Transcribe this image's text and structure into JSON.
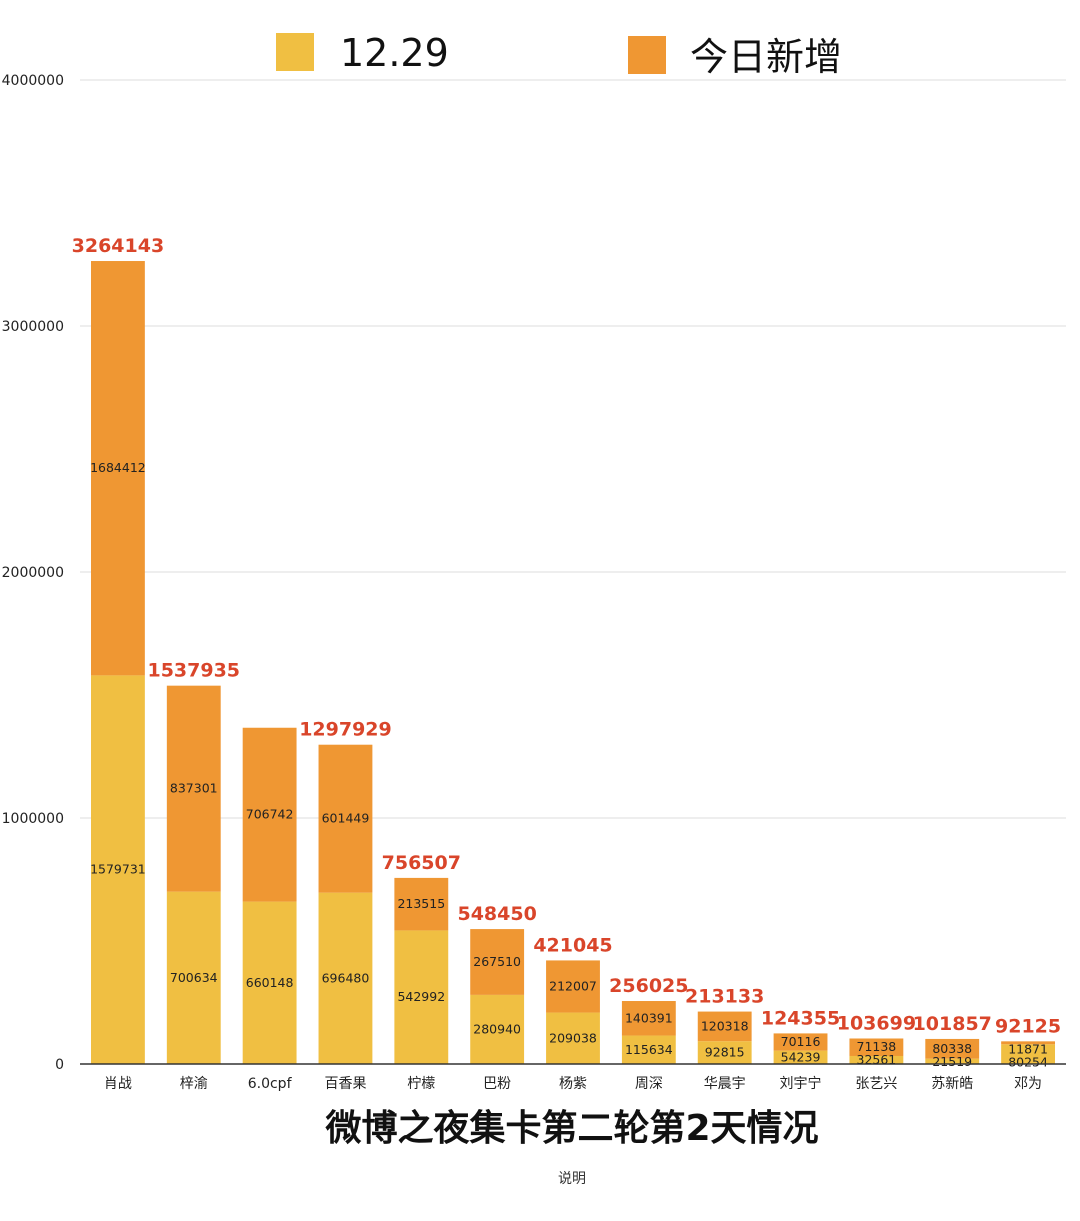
{
  "colors": {
    "base": "#f0bf42",
    "added": "#ef9733",
    "total_label": "#d9452a",
    "grid": "#dddddd",
    "axis": "#333333"
  },
  "chart_data": {
    "type": "bar",
    "stacked": true,
    "title": "微博之夜集卡第二轮第2天情况",
    "note": "说明",
    "categories": [
      "肖战",
      "梓渝",
      "6.0cpf",
      "百香果",
      "柠檬",
      "巴粉",
      "杨紫",
      "周深",
      "华晨宇",
      "刘宇宁",
      "张艺兴",
      "苏新皓",
      "邓为"
    ],
    "series": [
      {
        "name": "12.29",
        "values": [
          1579731,
          700634,
          660148,
          696480,
          542992,
          280940,
          209038,
          115634,
          92815,
          54239,
          32561,
          21519,
          80254
        ]
      },
      {
        "name": "今日新增",
        "values": [
          1684412,
          837301,
          706742,
          601449,
          213515,
          267510,
          212007,
          140391,
          120318,
          70116,
          71138,
          80338,
          11871
        ]
      }
    ],
    "totals": [
      "3264143",
      "1537935",
      "",
      "1297929",
      "756507",
      "548450",
      "421045",
      "256025",
      "213133",
      "124355",
      "103699",
      "101857",
      "92125"
    ],
    "ylim": [
      0,
      4000000
    ],
    "yticks": [
      "0",
      "1000000",
      "2000000",
      "3000000",
      "4000000"
    ],
    "grid": true,
    "legend_position": "top"
  }
}
